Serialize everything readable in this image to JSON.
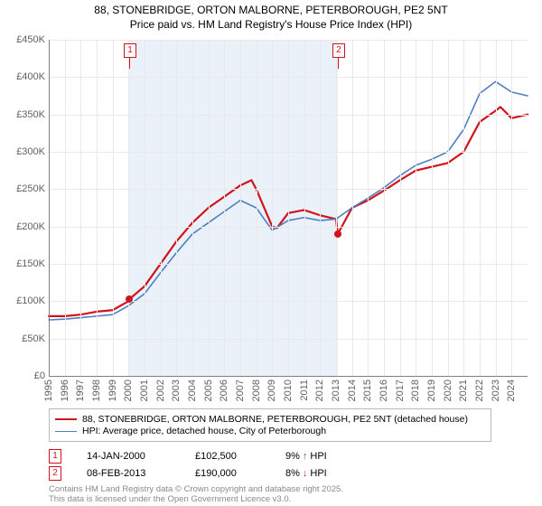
{
  "title_line1": "88, STONEBRIDGE, ORTON MALBORNE, PETERBOROUGH, PE2 5NT",
  "title_line2": "Price paid vs. HM Land Registry's House Price Index (HPI)",
  "chart": {
    "type": "line",
    "background_color": "#ffffff",
    "shade_color": "#eaf1f9",
    "grid_color": "#e9e9e9",
    "axis_color": "#808080",
    "tick_label_color": "#606060",
    "tick_fontsize": 11,
    "x_years": [
      1995,
      1996,
      1997,
      1998,
      1999,
      2000,
      2001,
      2002,
      2003,
      2004,
      2005,
      2006,
      2007,
      2008,
      2009,
      2010,
      2011,
      2012,
      2013,
      2014,
      2015,
      2016,
      2017,
      2018,
      2019,
      2020,
      2021,
      2022,
      2023,
      2024
    ],
    "x_min": 1995,
    "x_max": 2025,
    "y_ticklabels": [
      "£0",
      "£50K",
      "£100K",
      "£150K",
      "£200K",
      "£250K",
      "£300K",
      "£350K",
      "£400K",
      "£450K"
    ],
    "y_tickvalues": [
      0,
      50,
      100,
      150,
      200,
      250,
      300,
      350,
      400,
      450
    ],
    "y_min": 0,
    "y_max": 450,
    "shaded_regions": [
      {
        "from": 2000.04,
        "to": 2013.11
      }
    ],
    "series": [
      {
        "name": "primary",
        "label": "88, STONEBRIDGE, ORTON MALBORNE, PETERBOROUGH, PE2 5NT (detached house)",
        "color": "#d1131d",
        "width": 2.2,
        "points_year": [
          1995,
          1996,
          1997,
          1998,
          1999,
          2000,
          2000.04,
          2001,
          2002,
          2003,
          2004,
          2005,
          2006,
          2007,
          2007.7,
          2008,
          2009,
          2009.3,
          2010,
          2011,
          2012,
          2013,
          2013.11,
          2014,
          2015,
          2016,
          2017,
          2018,
          2019,
          2020,
          2021,
          2022,
          2023,
          2023.3,
          2024,
          2025
        ],
        "points_value": [
          80,
          80,
          82,
          86,
          88,
          100,
          102.5,
          120,
          150,
          180,
          205,
          225,
          240,
          255,
          262,
          250,
          200,
          198,
          218,
          222,
          215,
          210,
          190,
          225,
          235,
          248,
          262,
          275,
          280,
          285,
          300,
          340,
          355,
          360,
          345,
          350
        ]
      },
      {
        "name": "hpi",
        "label": "HPI: Average price, detached house, City of Peterborough",
        "color": "#4e7fc1",
        "width": 1.6,
        "points_year": [
          1995,
          1996,
          1997,
          1998,
          1999,
          2000,
          2001,
          2002,
          2003,
          2004,
          2005,
          2006,
          2007,
          2008,
          2009,
          2010,
          2011,
          2012,
          2013,
          2014,
          2015,
          2016,
          2017,
          2018,
          2019,
          2020,
          2021,
          2022,
          2023,
          2024,
          2025
        ],
        "points_value": [
          75,
          76,
          78,
          80,
          82,
          94,
          110,
          138,
          165,
          190,
          205,
          220,
          235,
          225,
          195,
          208,
          212,
          208,
          210,
          225,
          238,
          252,
          268,
          282,
          290,
          300,
          330,
          378,
          394,
          380,
          375
        ]
      }
    ],
    "markers": [
      {
        "id": "1",
        "year": 2000.04,
        "value": 102.5,
        "color": "#d1131d"
      },
      {
        "id": "2",
        "year": 2013.11,
        "value": 190,
        "color": "#d1131d"
      }
    ],
    "flags": [
      {
        "id": "1",
        "year": 2000.04,
        "color": "#d1131d"
      },
      {
        "id": "2",
        "year": 2013.11,
        "color": "#d1131d"
      }
    ]
  },
  "legend": {
    "border_color": "#b9b9b9",
    "items": [
      {
        "color": "#d1131d",
        "width": 2.2,
        "label": "88, STONEBRIDGE, ORTON MALBORNE, PETERBOROUGH, PE2 5NT (detached house)"
      },
      {
        "color": "#4e7fc1",
        "width": 1.6,
        "label": "HPI: Average price, detached house, City of Peterborough"
      }
    ]
  },
  "sales": [
    {
      "flag": "1",
      "flag_color": "#d1131d",
      "date": "14-JAN-2000",
      "price": "£102,500",
      "diff_pct": "9%",
      "diff_dir": "up",
      "diff_label": "HPI"
    },
    {
      "flag": "2",
      "flag_color": "#d1131d",
      "date": "08-FEB-2013",
      "price": "£190,000",
      "diff_pct": "8%",
      "diff_dir": "down",
      "diff_label": "HPI"
    }
  ],
  "footnote_line1": "Contains HM Land Registry data © Crown copyright and database right 2025.",
  "footnote_line2": "This data is licensed under the Open Government Licence v3.0.",
  "arrows": {
    "up": "↑",
    "down": "↓"
  },
  "diff_colors": {
    "up": "#2a8a2a",
    "down": "#c03030"
  }
}
